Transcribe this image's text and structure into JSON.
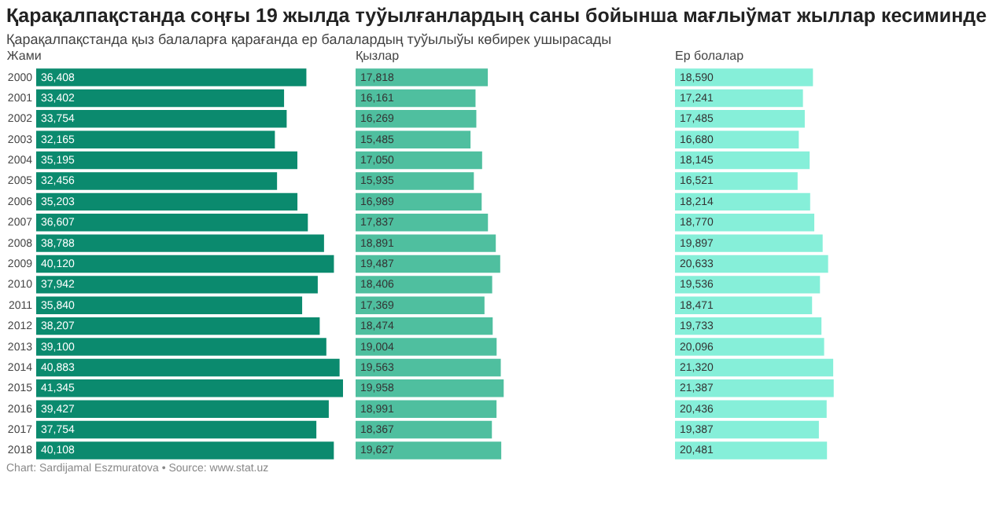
{
  "chart_data": [
    {
      "type": "bar",
      "orientation": "horizontal",
      "title": "Қарақалпақстанда соңғы 19 жылда туўылғанлардың саны бойынша мағлыўмат жыллар кесиминде",
      "subtitle": "Қарақалпақстанда қыз балаларға қарағанда ер балалардың туўылыўы көбирек ушырасады",
      "annotations": [
        "Chart: Sardijamal Eszmuratova • Source: www.stat.uz"
      ],
      "tick_labels": "y",
      "categories": [
        "2000",
        "2001",
        "2002",
        "2003",
        "2004",
        "2005",
        "2006",
        "2007",
        "2008",
        "2009",
        "2010",
        "2011",
        "2012",
        "2013",
        "2014",
        "2015",
        "2016",
        "2017",
        "2018"
      ],
      "series": [
        {
          "name": "Жами",
          "color": "#0b8a6e",
          "values": [
            36408,
            33402,
            33754,
            32165,
            35195,
            32456,
            35203,
            36607,
            38788,
            40120,
            37942,
            35840,
            38207,
            39100,
            40883,
            41345,
            39427,
            37754,
            40108
          ],
          "value_labels": [
            "36,408",
            "33,402",
            "33,754",
            "32,165",
            "35,195",
            "32,456",
            "35,203",
            "36,607",
            "38,788",
            "40,120",
            "37,942",
            "35,840",
            "38,207",
            "39,100",
            "40,883",
            "41,345",
            "39,427",
            "37,754",
            "40,108"
          ]
        }
      ]
    },
    {
      "type": "bar",
      "orientation": "horizontal",
      "tick_labels": false,
      "categories": [
        "2000",
        "2001",
        "2002",
        "2003",
        "2004",
        "2005",
        "2006",
        "2007",
        "2008",
        "2009",
        "2010",
        "2011",
        "2012",
        "2013",
        "2014",
        "2015",
        "2016",
        "2017",
        "2018"
      ],
      "series": [
        {
          "name": "Қызлар",
          "color": "#4fbf9f",
          "values": [
            17818,
            16161,
            16269,
            15485,
            17050,
            15935,
            16989,
            17837,
            18891,
            19487,
            18406,
            17369,
            18474,
            19004,
            19563,
            19958,
            18991,
            18367,
            19627
          ],
          "value_labels": [
            "17,818",
            "16,161",
            "16,269",
            "15,485",
            "17,050",
            "15,935",
            "16,989",
            "17,837",
            "18,891",
            "19,487",
            "18,406",
            "17,369",
            "18,474",
            "19,004",
            "19,563",
            "19,958",
            "18,991",
            "18,367",
            "19,627"
          ]
        }
      ]
    },
    {
      "type": "bar",
      "orientation": "horizontal",
      "tick_labels": false,
      "categories": [
        "2000",
        "2001",
        "2002",
        "2003",
        "2004",
        "2005",
        "2006",
        "2007",
        "2008",
        "2009",
        "2010",
        "2011",
        "2012",
        "2013",
        "2014",
        "2015",
        "2016",
        "2017",
        "2018"
      ],
      "series": [
        {
          "name": "Ер болалар",
          "color": "#86efd9",
          "values": [
            18590,
            17241,
            17485,
            16680,
            18145,
            16521,
            18214,
            18770,
            19897,
            20633,
            19536,
            18471,
            19733,
            20096,
            21320,
            21387,
            20436,
            19387,
            20481
          ],
          "value_labels": [
            "18,590",
            "17,241",
            "17,485",
            "16,680",
            "18,145",
            "16,521",
            "18,214",
            "18,770",
            "19,897",
            "20,633",
            "19,536",
            "18,471",
            "19,733",
            "20,096",
            "21,320",
            "21,387",
            "20,436",
            "19,387",
            "20,481"
          ]
        }
      ]
    }
  ]
}
